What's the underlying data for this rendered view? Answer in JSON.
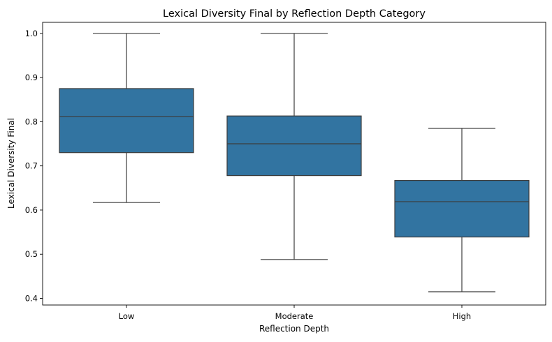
{
  "chart_data": {
    "type": "box",
    "title": "Lexical Diversity Final by Reflection Depth Category",
    "xlabel": "Reflection Depth",
    "ylabel": "Lexical Diversity Final",
    "categories": [
      "Low",
      "Moderate",
      "High"
    ],
    "boxes": [
      {
        "category": "Low",
        "whisker_low": 0.617,
        "q1": 0.73,
        "median": 0.812,
        "q3": 0.875,
        "whisker_high": 1.0
      },
      {
        "category": "Moderate",
        "whisker_low": 0.488,
        "q1": 0.678,
        "median": 0.75,
        "q3": 0.813,
        "whisker_high": 1.0
      },
      {
        "category": "High",
        "whisker_low": 0.415,
        "q1": 0.539,
        "median": 0.619,
        "q3": 0.667,
        "whisker_high": 0.785
      }
    ],
    "yticks": [
      "0.4",
      "0.5",
      "0.6",
      "0.7",
      "0.8",
      "0.9",
      "1.0"
    ],
    "ylim": [
      0.385,
      1.025
    ],
    "grid": false,
    "legend": "none",
    "box_color": "#3274a1",
    "line_color": "#3d3d3d"
  }
}
